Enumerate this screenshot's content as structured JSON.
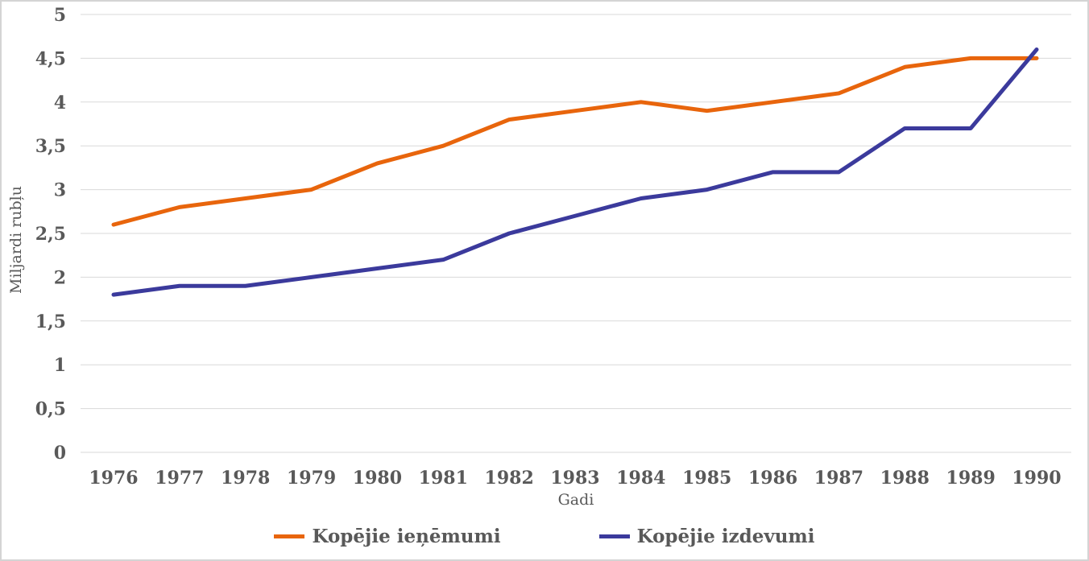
{
  "chart_data": {
    "type": "line",
    "title": "",
    "x_categories": [
      "1976",
      "1977",
      "1978",
      "1979",
      "1980",
      "1981",
      "1982",
      "1983",
      "1984",
      "1985",
      "1986",
      "1987",
      "1988",
      "1989",
      "1990"
    ],
    "series": [
      {
        "name": "Kopējie ieņēmumi",
        "color": "#e8650c",
        "values": [
          2.6,
          2.8,
          2.9,
          3.0,
          3.3,
          3.5,
          3.8,
          3.9,
          4.0,
          3.9,
          4.0,
          4.1,
          4.4,
          4.5,
          4.5
        ]
      },
      {
        "name": "Kopējie izdevumi",
        "color": "#3b3a9c",
        "values": [
          1.8,
          1.9,
          1.9,
          2.0,
          2.1,
          2.2,
          2.5,
          2.7,
          2.9,
          3.0,
          3.2,
          3.2,
          3.7,
          3.7,
          4.6
        ]
      }
    ],
    "xlabel": "Gadi",
    "ylabel": "Miljardi rubļu",
    "ylim": [
      0,
      5
    ],
    "ytick_step": 0.5,
    "ytick_labels": [
      "0",
      "0,5",
      "1",
      "1,5",
      "2",
      "2,5",
      "3",
      "3,5",
      "4",
      "4,5",
      "5"
    ],
    "grid": true,
    "legend_position": "bottom"
  },
  "style": {
    "grid_color": "#d9d9d9",
    "axis_text_color": "#595959",
    "background_color": "#ffffff",
    "border_color": "#d4d4d4",
    "line_width": 5
  }
}
